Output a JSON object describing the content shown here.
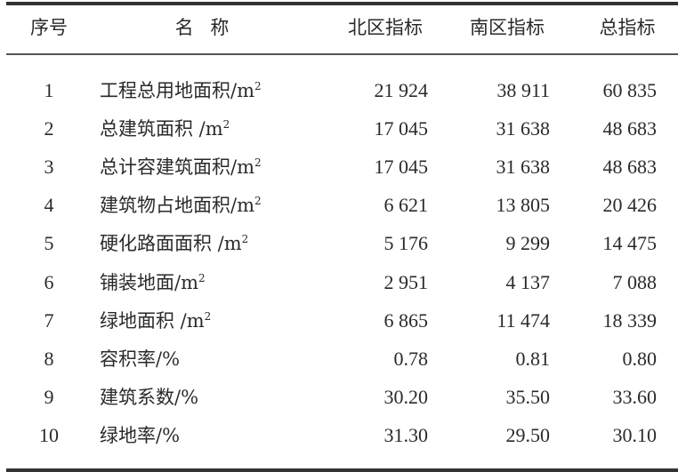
{
  "headers": {
    "index": "序号",
    "name": "名 称",
    "north": "北区指标",
    "south": "南区指标",
    "total": "总指标"
  },
  "rows": [
    {
      "index": "1",
      "name": "工程总用地面积/m",
      "unit_sup": "2",
      "north": "21 924",
      "south": "38 911",
      "total": "60 835"
    },
    {
      "index": "2",
      "name": "总建筑面积 /m",
      "unit_sup": "2",
      "north": "17 045",
      "south": "31 638",
      "total": "48 683"
    },
    {
      "index": "3",
      "name": "总计容建筑面积/m",
      "unit_sup": "2",
      "north": "17 045",
      "south": "31 638",
      "total": "48 683"
    },
    {
      "index": "4",
      "name": "建筑物占地面积/m",
      "unit_sup": "2",
      "north": "6 621",
      "south": "13 805",
      "total": "20 426"
    },
    {
      "index": "5",
      "name": "硬化路面面积 /m",
      "unit_sup": "2",
      "north": "5 176",
      "south": "9 299",
      "total": "14 475"
    },
    {
      "index": "6",
      "name": "铺装地面/m",
      "unit_sup": "2",
      "north": "2 951",
      "south": "4 137",
      "total": "7 088"
    },
    {
      "index": "7",
      "name": "绿地面积 /m",
      "unit_sup": "2",
      "north": "6 865",
      "south": "11 474",
      "total": "18 339"
    },
    {
      "index": "8",
      "name": "容积率/%",
      "unit_sup": "",
      "north": "0.78",
      "south": "0.81",
      "total": "0.80"
    },
    {
      "index": "9",
      "name": "建筑系数/%",
      "unit_sup": "",
      "north": "30.20",
      "south": "35.50",
      "total": "33.60"
    },
    {
      "index": "10",
      "name": "绿地率/%",
      "unit_sup": "",
      "north": "31.30",
      "south": "29.50",
      "total": "30.10"
    }
  ]
}
